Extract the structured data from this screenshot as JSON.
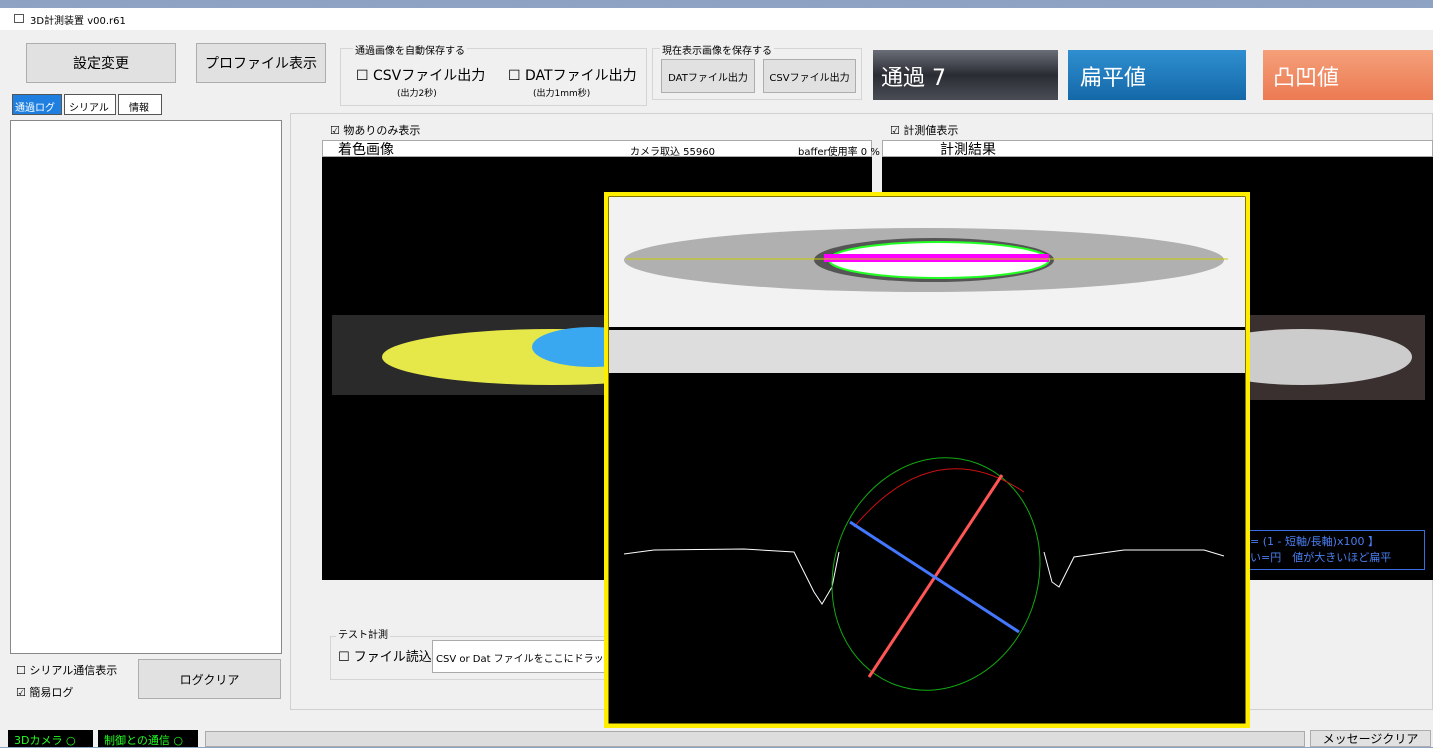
{
  "window": {
    "title": "3D計測装置 v00.r61"
  },
  "toolbar": {
    "settings": "設定変更",
    "profile": "プロファイル表示",
    "auto_save": {
      "title": "通過画像を自動保存する",
      "csv": "☐ CSVファイル出力",
      "csv_note": "(出力2秒)",
      "dat": "☐ DATファイル出力",
      "dat_note": "(出力1mm秒)"
    },
    "save_current": {
      "title": "現在表示画像を保存する",
      "dat": "DATファイル出力",
      "csv": "CSVファイル出力"
    }
  },
  "status_panels": {
    "pass": "通過 7",
    "flatness": "扁平値",
    "unevenness": "凸凹値"
  },
  "tabs": [
    "通過ログ",
    "シリアル",
    "情報"
  ],
  "log_panel": {
    "serial_display": "☐ シリアル通信表示",
    "simple_log": "☑ 簡易ログ",
    "clear": "ログクリア"
  },
  "color_view": {
    "checkbox": "☑ 物ありのみ表示",
    "header": "着色画像",
    "camera": "カメラ取込 55960",
    "buffer": "baffer使用率 0 %"
  },
  "result_view": {
    "checkbox": "☑ 計測値表示",
    "header": "計測結果",
    "formula_1": "= (1 - 短軸/長軸)x100 】",
    "formula_2": "い=円　値が大きいほど扁平"
  },
  "test": {
    "title": "テスト計測",
    "file_read": "☐ ファイル読込",
    "drop": "CSV or Dat ファイルをここにドラッ"
  },
  "statusbar": {
    "camera": "3Dカメラ ○",
    "control": "制御との通信 ○",
    "clear_messages": "メッセージクリア"
  }
}
